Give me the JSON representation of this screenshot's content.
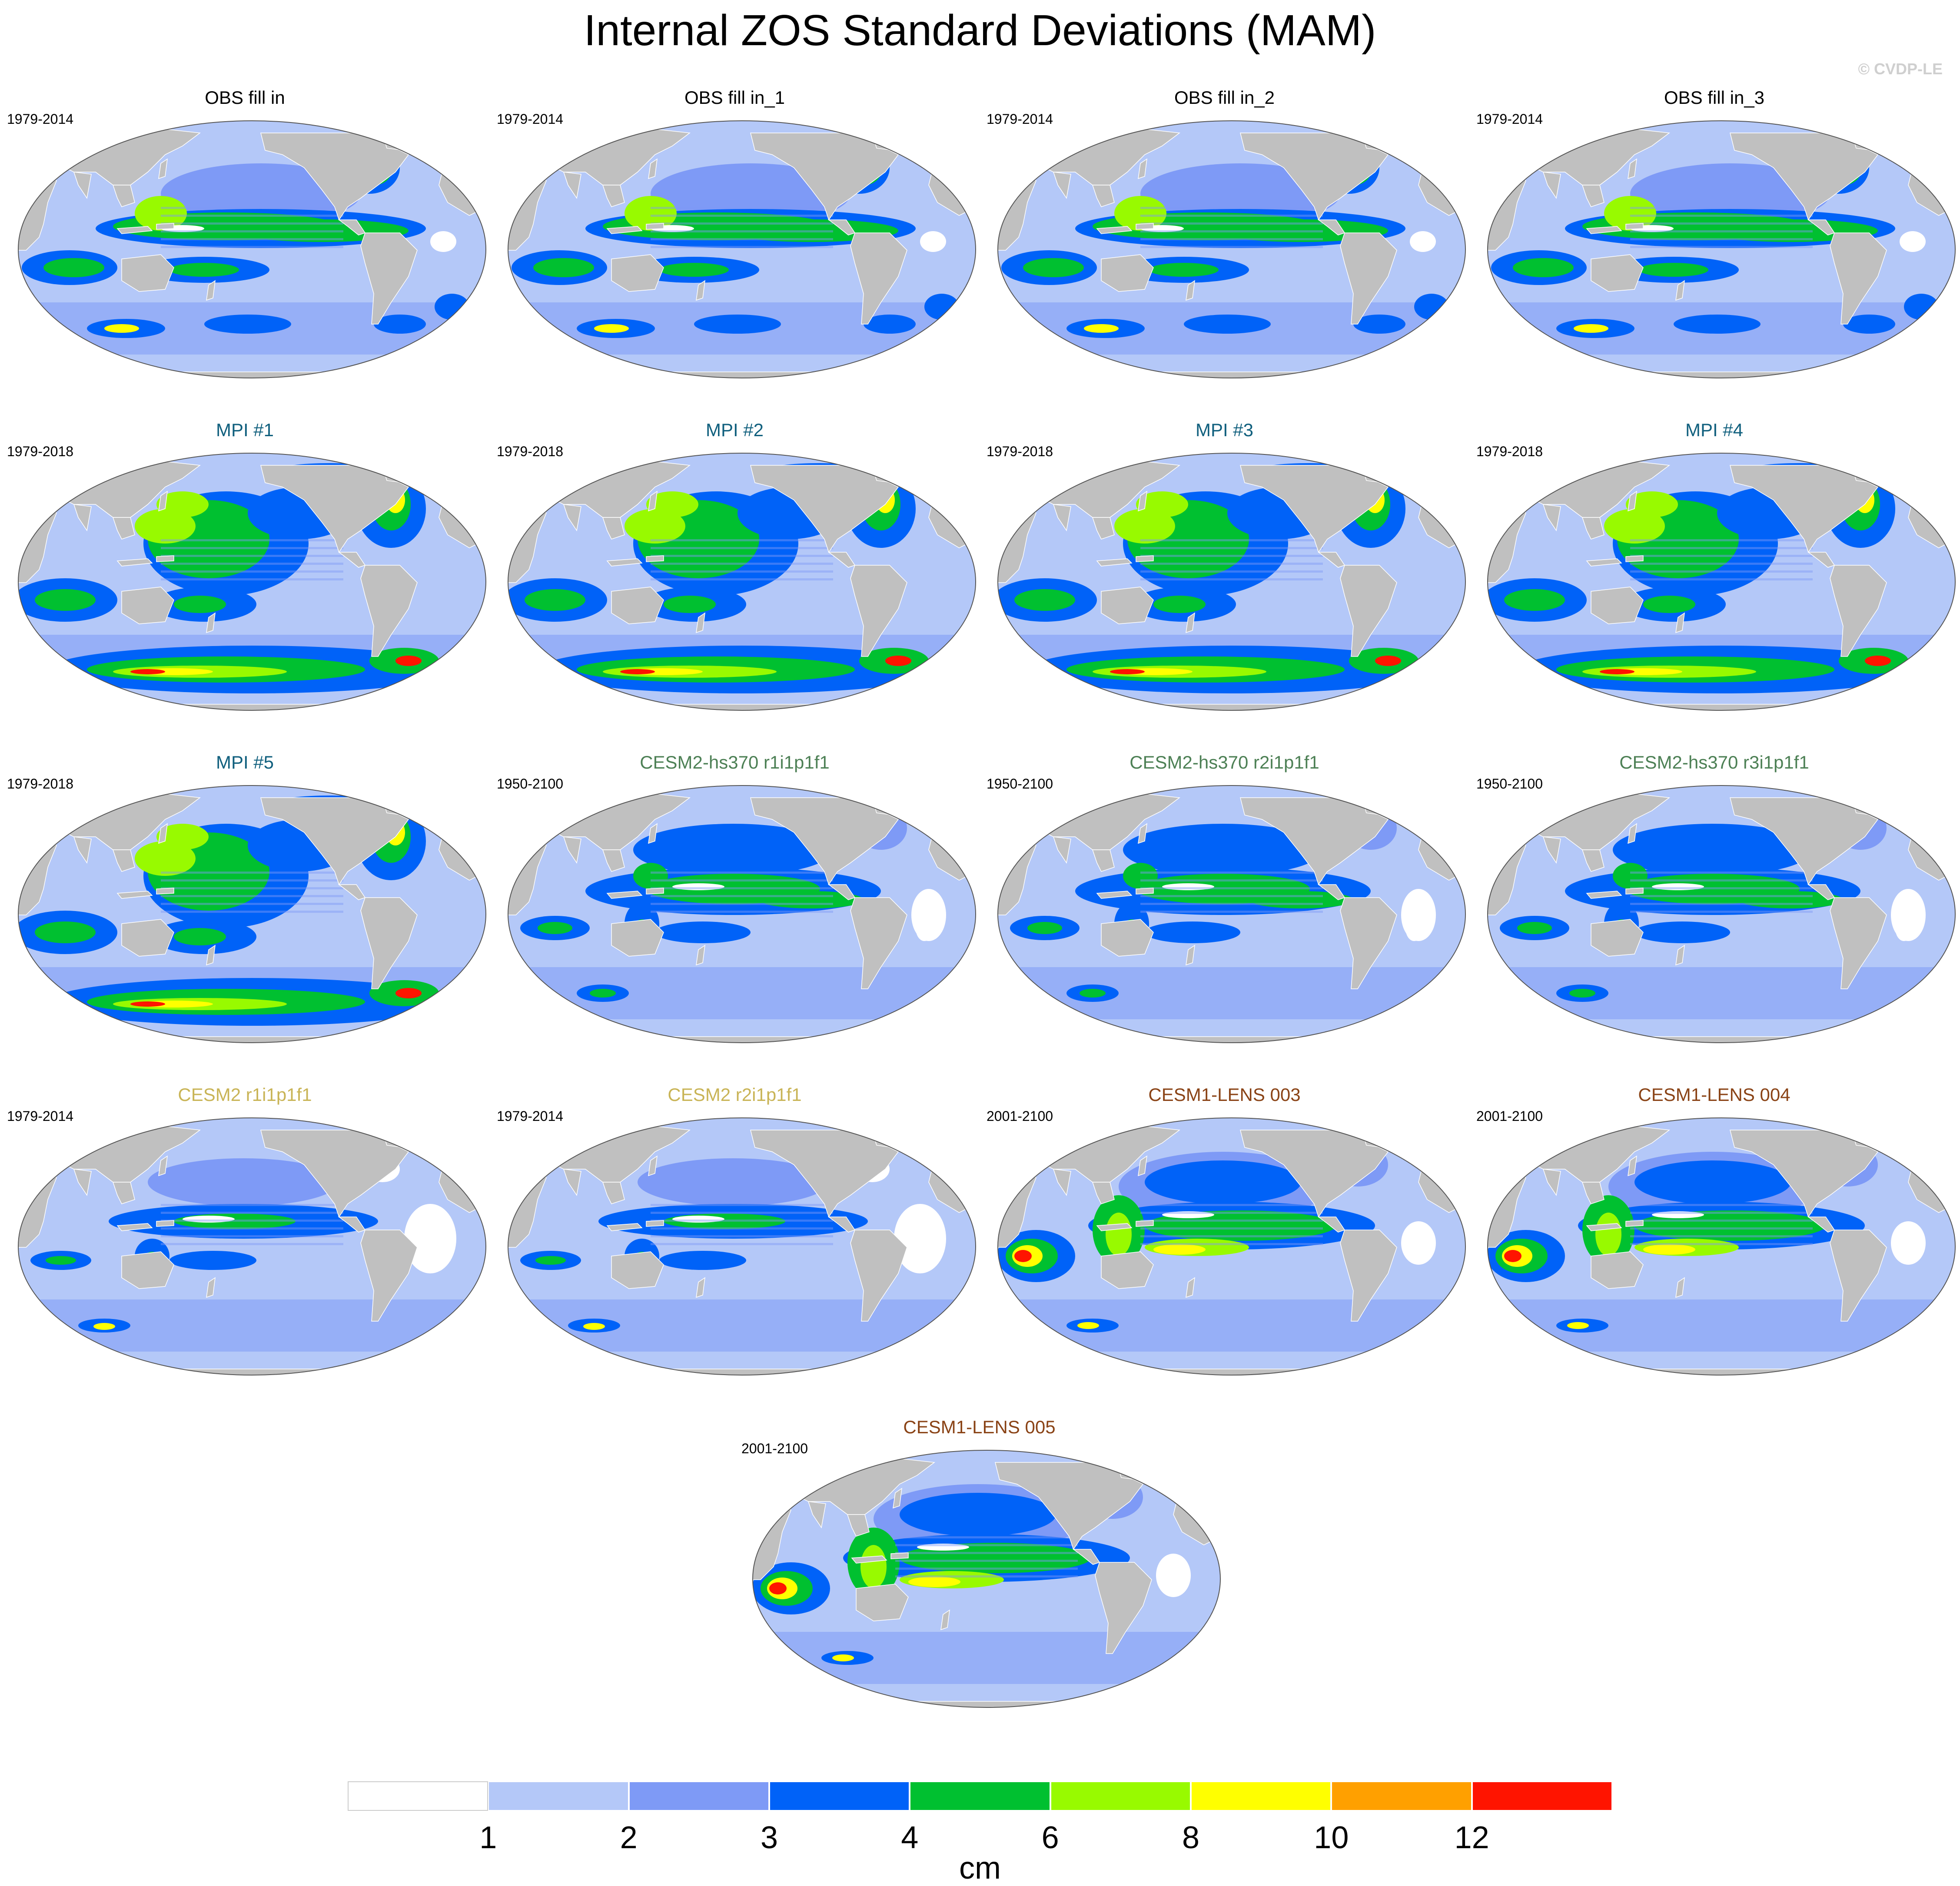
{
  "title": "Internal ZOS Standard Deviations (MAM)",
  "watermark": "© CVDP-LE",
  "colors": {
    "ocean_levels": [
      "#ffffff",
      "#b4c8f8",
      "#7e9af6",
      "#0062f8",
      "#00c030",
      "#98fa00",
      "#ffff00",
      "#ffa000",
      "#ff1400"
    ],
    "land": "#c0c0c0",
    "title_obs": "#000000",
    "title_mpi": "#11607e",
    "title_cesm2_hs370": "#4d8055",
    "title_cesm2": "#c9b456",
    "title_cesm1_lens": "#8a4316"
  },
  "panels": [
    {
      "title": "OBS fill in",
      "years": "1979-2014",
      "group": "obs",
      "pattern": "obs"
    },
    {
      "title": "OBS fill in_1",
      "years": "1979-2014",
      "group": "obs",
      "pattern": "obs"
    },
    {
      "title": "OBS fill in_2",
      "years": "1979-2014",
      "group": "obs",
      "pattern": "obs"
    },
    {
      "title": "OBS fill in_3",
      "years": "1979-2014",
      "group": "obs",
      "pattern": "obs"
    },
    {
      "title": "MPI #1",
      "years": "1979-2018",
      "group": "mpi",
      "pattern": "mpi"
    },
    {
      "title": "MPI #2",
      "years": "1979-2018",
      "group": "mpi",
      "pattern": "mpi"
    },
    {
      "title": "MPI #3",
      "years": "1979-2018",
      "group": "mpi",
      "pattern": "mpi"
    },
    {
      "title": "MPI #4",
      "years": "1979-2018",
      "group": "mpi",
      "pattern": "mpi"
    },
    {
      "title": "MPI #5",
      "years": "1979-2018",
      "group": "mpi",
      "pattern": "mpi"
    },
    {
      "title": "CESM2-hs370 r1i1p1f1",
      "years": "1950-2100",
      "group": "cesm2_hs370",
      "pattern": "cesm2"
    },
    {
      "title": "CESM2-hs370 r2i1p1f1",
      "years": "1950-2100",
      "group": "cesm2_hs370",
      "pattern": "cesm2"
    },
    {
      "title": "CESM2-hs370 r3i1p1f1",
      "years": "1950-2100",
      "group": "cesm2_hs370",
      "pattern": "cesm2"
    },
    {
      "title": "CESM2 r1i1p1f1",
      "years": "1979-2014",
      "group": "cesm2",
      "pattern": "cesm2low"
    },
    {
      "title": "CESM2 r2i1p1f1",
      "years": "1979-2014",
      "group": "cesm2",
      "pattern": "cesm2low"
    },
    {
      "title": "CESM1-LENS 003",
      "years": "2001-2100",
      "group": "cesm1_lens",
      "pattern": "cesm1"
    },
    {
      "title": "CESM1-LENS 004",
      "years": "2001-2100",
      "group": "cesm1_lens",
      "pattern": "cesm1"
    },
    {
      "title": "CESM1-LENS 005",
      "years": "2001-2100",
      "group": "cesm1_lens",
      "pattern": "cesm1"
    }
  ],
  "colorbar": {
    "ticks": [
      "1",
      "2",
      "3",
      "4",
      "6",
      "8",
      "10",
      "12"
    ],
    "unit": "cm"
  }
}
